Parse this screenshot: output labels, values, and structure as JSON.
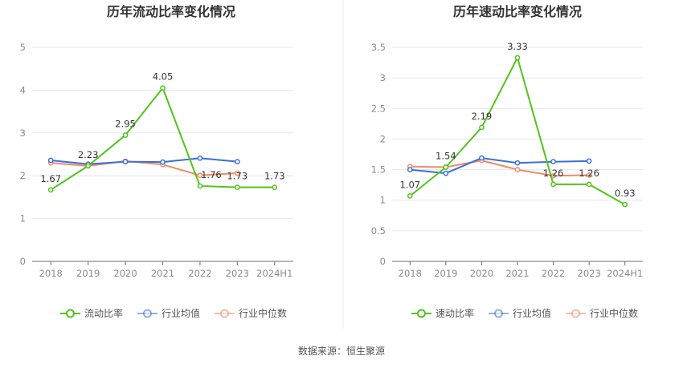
{
  "source_label": "数据来源：恒生聚源",
  "chart_data": [
    {
      "type": "line",
      "title": "历年流动比率变化情况",
      "categories": [
        "2018",
        "2019",
        "2020",
        "2021",
        "2022",
        "2023",
        "2024H1"
      ],
      "ylim": [
        0,
        5
      ],
      "yticks": [
        0,
        1,
        2,
        3,
        4,
        5
      ],
      "grid": true,
      "legend_position": "bottom",
      "series": [
        {
          "name": "流动比率",
          "color": "#52c41a",
          "values": [
            1.67,
            2.23,
            2.95,
            4.05,
            1.76,
            1.73,
            1.73
          ],
          "labels": [
            "1.67",
            "2.23",
            "2.95",
            "4.05",
            "1.76",
            "1.73",
            "1.73"
          ]
        },
        {
          "name": "行业均值",
          "color": "#3b6fd8",
          "values": [
            2.36,
            2.27,
            2.33,
            2.32,
            2.41,
            2.33,
            null
          ]
        },
        {
          "name": "行业中位数",
          "color": "#f08a6a",
          "values": [
            2.3,
            2.23,
            2.34,
            2.26,
            2.01,
            2.06,
            null
          ]
        }
      ]
    },
    {
      "type": "line",
      "title": "历年速动比率变化情况",
      "categories": [
        "2018",
        "2019",
        "2020",
        "2021",
        "2022",
        "2023",
        "2024H1"
      ],
      "ylim": [
        0,
        3.5
      ],
      "yticks": [
        0,
        0.5,
        1,
        1.5,
        2,
        2.5,
        3,
        3.5
      ],
      "grid": true,
      "legend_position": "bottom",
      "series": [
        {
          "name": "速动比率",
          "color": "#52c41a",
          "values": [
            1.07,
            1.54,
            2.19,
            3.33,
            1.26,
            1.26,
            0.93
          ],
          "labels": [
            "1.07",
            "1.54",
            "2.19",
            "3.33",
            "1.26",
            "1.26",
            "0.93"
          ]
        },
        {
          "name": "行业均值",
          "color": "#3b6fd8",
          "values": [
            1.5,
            1.44,
            1.69,
            1.61,
            1.63,
            1.64,
            null
          ]
        },
        {
          "name": "行业中位数",
          "color": "#f08a6a",
          "values": [
            1.55,
            1.54,
            1.65,
            1.5,
            1.4,
            1.41,
            null
          ]
        }
      ]
    }
  ]
}
